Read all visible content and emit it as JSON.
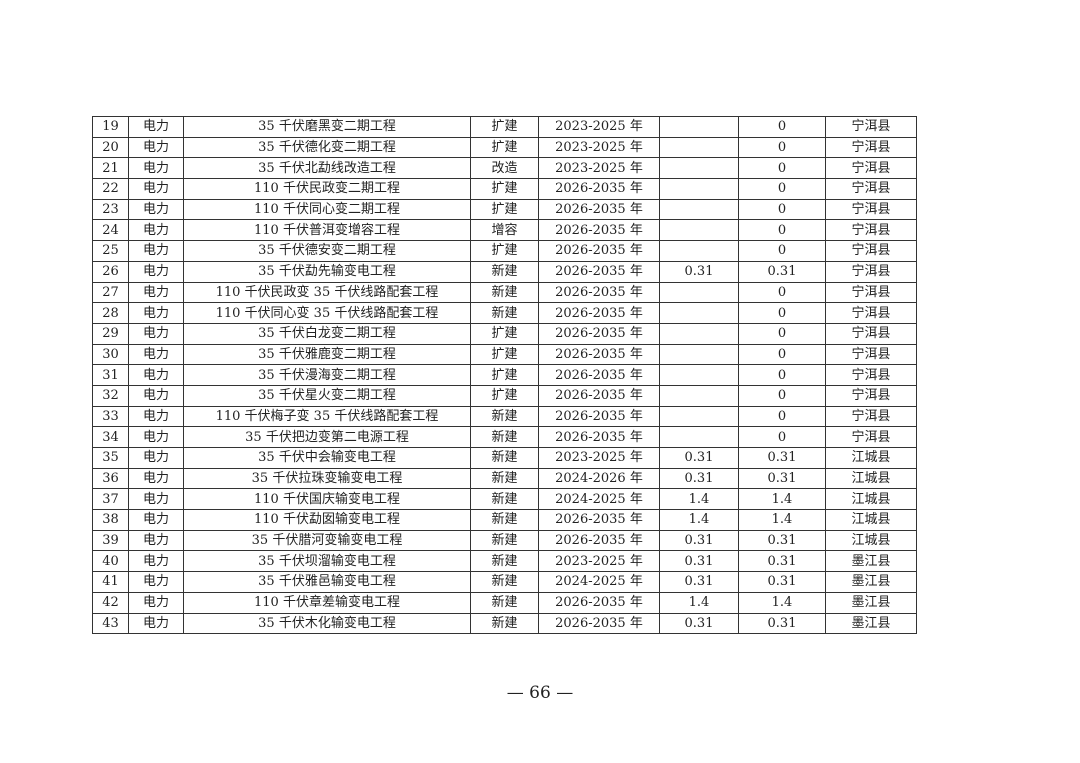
{
  "rows": [
    [
      "19",
      "电力",
      "35 千伏磨黑变二期工程",
      "扩建",
      "2023-2025 年",
      "",
      "0",
      "宁洱县"
    ],
    [
      "20",
      "电力",
      "35 千伏德化变二期工程",
      "扩建",
      "2023-2025 年",
      "",
      "0",
      "宁洱县"
    ],
    [
      "21",
      "电力",
      "35 千伏北勐线改造工程",
      "改造",
      "2023-2025 年",
      "",
      "0",
      "宁洱县"
    ],
    [
      "22",
      "电力",
      "110 千伏民政变二期工程",
      "扩建",
      "2026-2035 年",
      "",
      "0",
      "宁洱县"
    ],
    [
      "23",
      "电力",
      "110 千伏同心变二期工程",
      "扩建",
      "2026-2035 年",
      "",
      "0",
      "宁洱县"
    ],
    [
      "24",
      "电力",
      "110 千伏普洱变增容工程",
      "增容",
      "2026-2035 年",
      "",
      "0",
      "宁洱县"
    ],
    [
      "25",
      "电力",
      "35 千伏德安变二期工程",
      "扩建",
      "2026-2035 年",
      "",
      "0",
      "宁洱县"
    ],
    [
      "26",
      "电力",
      "35 千伏勐先输变电工程",
      "新建",
      "2026-2035 年",
      "0.31",
      "0.31",
      "宁洱县"
    ],
    [
      "27",
      "电力",
      "110 千伏民政变 35 千伏线路配套工程",
      "新建",
      "2026-2035 年",
      "",
      "0",
      "宁洱县"
    ],
    [
      "28",
      "电力",
      "110 千伏同心变 35 千伏线路配套工程",
      "新建",
      "2026-2035 年",
      "",
      "0",
      "宁洱县"
    ],
    [
      "29",
      "电力",
      "35 千伏白龙变二期工程",
      "扩建",
      "2026-2035 年",
      "",
      "0",
      "宁洱县"
    ],
    [
      "30",
      "电力",
      "35 千伏雅鹿变二期工程",
      "扩建",
      "2026-2035 年",
      "",
      "0",
      "宁洱县"
    ],
    [
      "31",
      "电力",
      "35 千伏漫海变二期工程",
      "扩建",
      "2026-2035 年",
      "",
      "0",
      "宁洱县"
    ],
    [
      "32",
      "电力",
      "35 千伏星火变二期工程",
      "扩建",
      "2026-2035 年",
      "",
      "0",
      "宁洱县"
    ],
    [
      "33",
      "电力",
      "110 千伏梅子变 35 千伏线路配套工程",
      "新建",
      "2026-2035 年",
      "",
      "0",
      "宁洱县"
    ],
    [
      "34",
      "电力",
      "35 千伏把边变第二电源工程",
      "新建",
      "2026-2035 年",
      "",
      "0",
      "宁洱县"
    ],
    [
      "35",
      "电力",
      "35 千伏中会输变电工程",
      "新建",
      "2023-2025 年",
      "0.31",
      "0.31",
      "江城县"
    ],
    [
      "36",
      "电力",
      "35 千伏拉珠变输变电工程",
      "新建",
      "2024-2026 年",
      "0.31",
      "0.31",
      "江城县"
    ],
    [
      "37",
      "电力",
      "110 千伏国庆输变电工程",
      "新建",
      "2024-2025 年",
      "1.4",
      "1.4",
      "江城县"
    ],
    [
      "38",
      "电力",
      "110 千伏勐囡输变电工程",
      "新建",
      "2026-2035 年",
      "1.4",
      "1.4",
      "江城县"
    ],
    [
      "39",
      "电力",
      "35 千伏腊河变输变电工程",
      "新建",
      "2026-2035 年",
      "0.31",
      "0.31",
      "江城县"
    ],
    [
      "40",
      "电力",
      "35 千伏坝溜输变电工程",
      "新建",
      "2023-2025 年",
      "0.31",
      "0.31",
      "墨江县"
    ],
    [
      "41",
      "电力",
      "35 千伏雅邑输变电工程",
      "新建",
      "2024-2025 年",
      "0.31",
      "0.31",
      "墨江县"
    ],
    [
      "42",
      "电力",
      "110 千伏章差输变电工程",
      "新建",
      "2026-2035 年",
      "1.4",
      "1.4",
      "墨江县"
    ],
    [
      "43",
      "电力",
      "35 千伏木化输变电工程",
      "新建",
      "2026-2035 年",
      "0.31",
      "0.31",
      "墨江县"
    ]
  ],
  "page_number": "— 66 —"
}
